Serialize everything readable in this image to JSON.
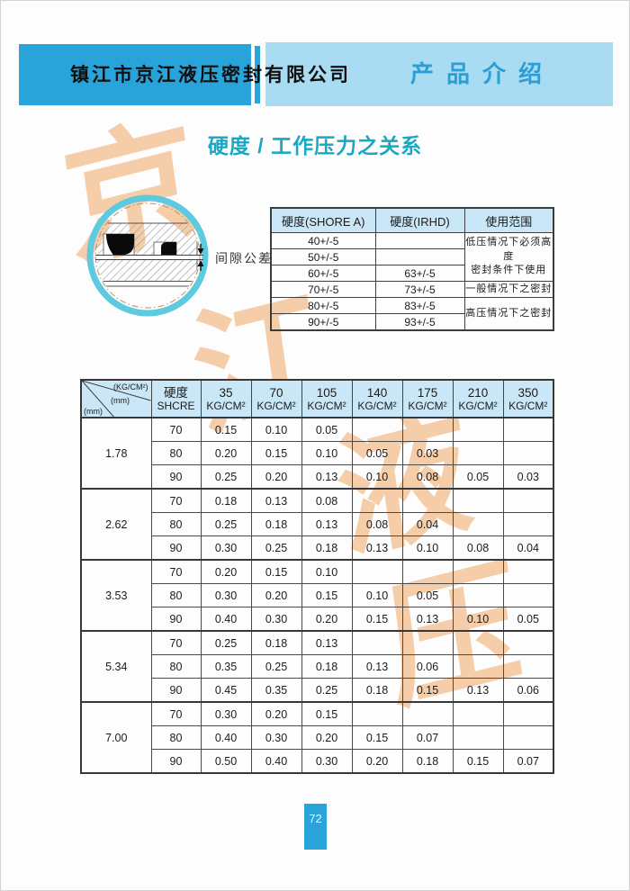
{
  "colors": {
    "brand_blue": "#29a4db",
    "light_blue_band": "#a9dcf2",
    "section_text_blue": "#2a9fd6",
    "title_teal": "#17a9c3",
    "table_header_bg": "#c9e7f6",
    "watermark": "#f5cba4",
    "ring_teal": "#5ecadf"
  },
  "header": {
    "company": "镇江市京江液压密封有限公司",
    "section": "产品介绍"
  },
  "title": "硬度 / 工作压力之关系",
  "watermark_chars": [
    "京",
    "江",
    "液",
    "压"
  ],
  "diagram": {
    "label": "间隙公差"
  },
  "hardness_table": {
    "headers": [
      "硬度(SHORE A)",
      "硬度(IRHD)",
      "使用范围"
    ],
    "rows": [
      {
        "shore": "40+/-5",
        "irhd": ""
      },
      {
        "shore": "50+/-5",
        "irhd": ""
      },
      {
        "shore": "60+/-5",
        "irhd": "63+/-5"
      },
      {
        "shore": "70+/-5",
        "irhd": "73+/-5"
      },
      {
        "shore": "80+/-5",
        "irhd": "83+/-5"
      },
      {
        "shore": "90+/-5",
        "irhd": "93+/-5"
      }
    ],
    "usage_spans": [
      {
        "start": 0,
        "span": 3,
        "lines": [
          "低压情况下必须高度",
          "密封条件下使用"
        ]
      },
      {
        "start": 3,
        "span": 1,
        "lines": [
          "一般情况下之密封"
        ]
      },
      {
        "start": 4,
        "span": 2,
        "lines": [
          "高压情况下之密封"
        ]
      }
    ]
  },
  "pressure_table": {
    "corner": {
      "top_label": "(KG/CM²)",
      "mid_label": "(mm)",
      "bottom_label": "(mm)"
    },
    "hardness_col": {
      "line1": "硬度",
      "line2": "SHCRE"
    },
    "pressure_cols": [
      "35",
      "70",
      "105",
      "140",
      "175",
      "210",
      "350"
    ],
    "unit": "KG/CM²",
    "groups": [
      {
        "size": "1.78",
        "rows": [
          {
            "hardness": "70",
            "values": [
              "0.15",
              "0.10",
              "0.05",
              "",
              "",
              "",
              ""
            ]
          },
          {
            "hardness": "80",
            "values": [
              "0.20",
              "0.15",
              "0.10",
              "0.05",
              "0.03",
              "",
              ""
            ]
          },
          {
            "hardness": "90",
            "values": [
              "0.25",
              "0.20",
              "0.13",
              "0.10",
              "0.08",
              "0.05",
              "0.03"
            ]
          }
        ]
      },
      {
        "size": "2.62",
        "rows": [
          {
            "hardness": "70",
            "values": [
              "0.18",
              "0.13",
              "0.08",
              "",
              "",
              "",
              ""
            ]
          },
          {
            "hardness": "80",
            "values": [
              "0.25",
              "0.18",
              "0.13",
              "0.08",
              "0.04",
              "",
              ""
            ]
          },
          {
            "hardness": "90",
            "values": [
              "0.30",
              "0.25",
              "0.18",
              "0.13",
              "0.10",
              "0.08",
              "0.04"
            ]
          }
        ]
      },
      {
        "size": "3.53",
        "rows": [
          {
            "hardness": "70",
            "values": [
              "0.20",
              "0.15",
              "0.10",
              "",
              "",
              "",
              ""
            ]
          },
          {
            "hardness": "80",
            "values": [
              "0.30",
              "0.20",
              "0.15",
              "0.10",
              "0.05",
              "",
              ""
            ]
          },
          {
            "hardness": "90",
            "values": [
              "0.40",
              "0.30",
              "0.20",
              "0.15",
              "0.13",
              "0.10",
              "0.05"
            ]
          }
        ]
      },
      {
        "size": "5.34",
        "rows": [
          {
            "hardness": "70",
            "values": [
              "0.25",
              "0.18",
              "0.13",
              "",
              "",
              "",
              ""
            ]
          },
          {
            "hardness": "80",
            "values": [
              "0.35",
              "0.25",
              "0.18",
              "0.13",
              "0.06",
              "",
              ""
            ]
          },
          {
            "hardness": "90",
            "values": [
              "0.45",
              "0.35",
              "0.25",
              "0.18",
              "0.15",
              "0.13",
              "0.06"
            ]
          }
        ]
      },
      {
        "size": "7.00",
        "rows": [
          {
            "hardness": "70",
            "values": [
              "0.30",
              "0.20",
              "0.15",
              "",
              "",
              "",
              ""
            ]
          },
          {
            "hardness": "80",
            "values": [
              "0.40",
              "0.30",
              "0.20",
              "0.15",
              "0.07",
              "",
              ""
            ]
          },
          {
            "hardness": "90",
            "values": [
              "0.50",
              "0.40",
              "0.30",
              "0.20",
              "0.18",
              "0.15",
              "0.07"
            ]
          }
        ]
      }
    ]
  },
  "footer": {
    "page_number": "72"
  }
}
